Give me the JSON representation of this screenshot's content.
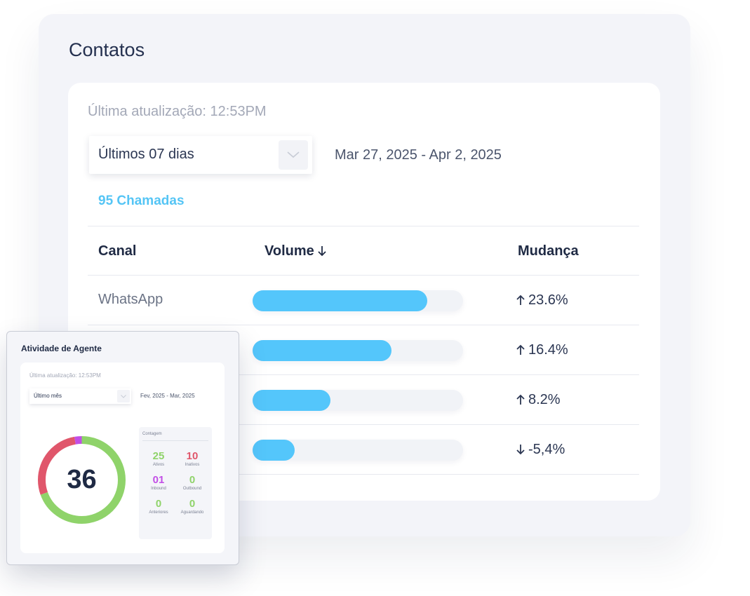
{
  "contacts": {
    "title": "Contatos",
    "last_update": "Última atualização: 12:53PM",
    "period_select": "Últimos 07 dias",
    "date_range": "Mar 27, 2025 - Apr 2, 2025",
    "calls": "95 Chamadas",
    "columns": {
      "channel": "Canal",
      "volume": "Volume",
      "change": "Mudança"
    },
    "rows": [
      {
        "channel": "WhatsApp",
        "volume_fraction": 0.83,
        "change": "23.6%",
        "direction": "up"
      },
      {
        "channel": "",
        "volume_fraction": 0.66,
        "change": "16.4%",
        "direction": "up"
      },
      {
        "channel": "",
        "volume_fraction": 0.37,
        "change": "8.2%",
        "direction": "up"
      },
      {
        "channel": "",
        "volume_fraction": 0.2,
        "change": "-5,4%",
        "direction": "down"
      }
    ],
    "colors": {
      "bar": "#54c6fb",
      "accent": "#55c5f5"
    }
  },
  "agent_activity": {
    "title": "Atividade de Agente",
    "last_update": "Última atualização: 12:53PM",
    "period_select": "Último mês",
    "date_range": "Fev, 2025 - Mar, 2025",
    "total": "36",
    "count_title": "Contagem",
    "stats": [
      {
        "value": "25",
        "label": "Ativos",
        "color": "#8fd36a"
      },
      {
        "value": "10",
        "label": "Inativos",
        "color": "#e0566b"
      },
      {
        "value": "01",
        "label": "Inbound",
        "color": "#c24ee6"
      },
      {
        "value": "0",
        "label": "Outbound",
        "color": "#8fd36a"
      },
      {
        "value": "0",
        "label": "Anteriores",
        "color": "#8fd36a"
      },
      {
        "value": "0",
        "label": "Aguardando",
        "color": "#8fd36a"
      }
    ],
    "donut": [
      {
        "label": "Ativos",
        "value": 25,
        "color": "#8fd36a"
      },
      {
        "label": "Inativos",
        "value": 10,
        "color": "#e0566b"
      },
      {
        "label": "Inbound",
        "value": 1,
        "color": "#c24ee6"
      }
    ]
  }
}
